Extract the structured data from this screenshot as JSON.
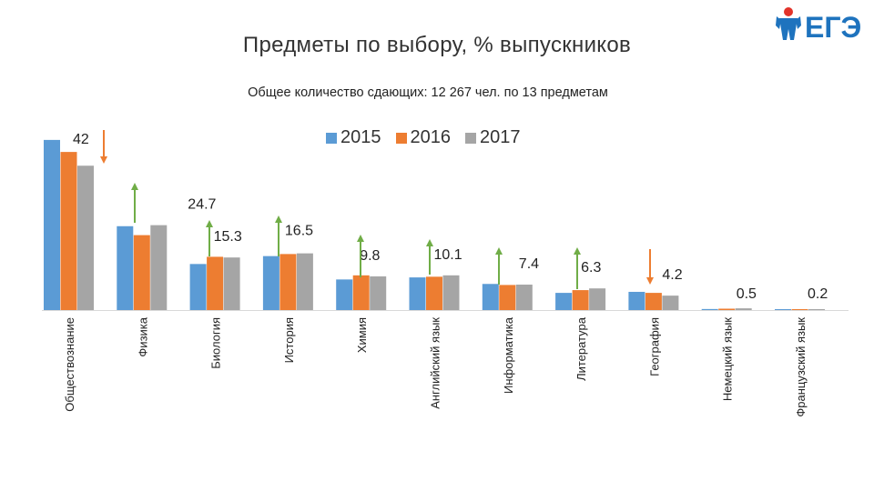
{
  "title": "Предметы по выбору, % выпускников",
  "subtitle": "Общее количество сдающих: 12 267 чел. по 13 предметам",
  "logo": {
    "text": "ЕГЭ",
    "colors": {
      "blue": "#1e73be",
      "red": "#e2332a"
    }
  },
  "colors": {
    "s2015": "#5b9bd5",
    "s2016": "#ed7d31",
    "s2017": "#a5a5a5",
    "arrow_up": "#70ad47",
    "arrow_down": "#ed7d31"
  },
  "chart_data": {
    "type": "bar",
    "legend_position": "top",
    "categories": [
      "Обществознание",
      "Физика",
      "Биология",
      "История",
      "Химия",
      "Английский язык",
      "Информатика",
      "Литература",
      "География",
      "Немецкий язык",
      "Французский язык"
    ],
    "series": [
      {
        "name": "2015",
        "values": [
          49.5,
          24.4,
          13.4,
          15.7,
          8.9,
          9.5,
          7.6,
          5.0,
          5.3,
          0.3,
          0.1
        ]
      },
      {
        "name": "2016",
        "values": [
          46.0,
          21.8,
          15.5,
          16.3,
          10.1,
          9.7,
          7.3,
          5.8,
          5.0,
          0.4,
          0.2
        ]
      },
      {
        "name": "2017",
        "values": [
          42,
          24.7,
          15.3,
          16.5,
          9.8,
          10.1,
          7.4,
          6.3,
          4.2,
          0.5,
          0.2
        ]
      }
    ],
    "data_labels": [
      "42",
      "24.7",
      "15.3",
      "16.5",
      "9.8",
      "10.1",
      "7.4",
      "6.3",
      "4.2",
      "0.5",
      "0.2"
    ],
    "trend_arrows": [
      "down",
      "up",
      "up",
      "up",
      "up",
      "up",
      "up",
      "up",
      "down",
      "none",
      "none"
    ],
    "ylim": [
      0,
      50
    ],
    "grid": false
  }
}
